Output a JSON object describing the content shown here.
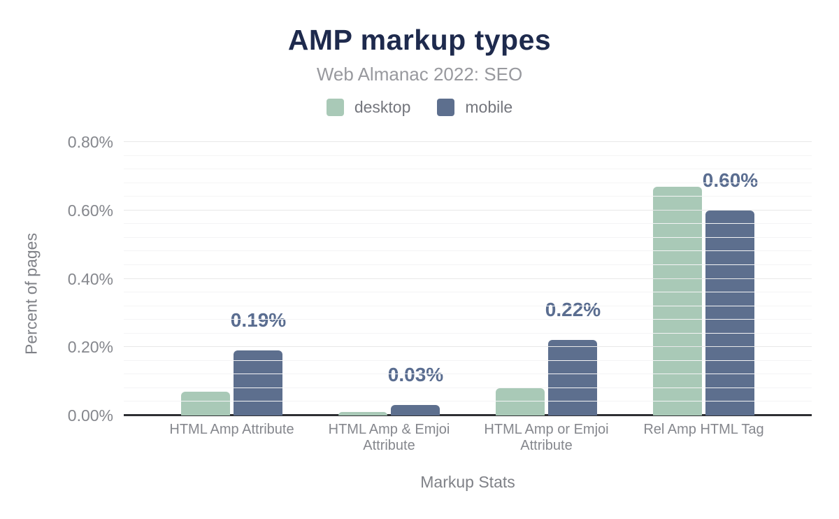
{
  "header": {
    "title": "AMP markup types",
    "subtitle": "Web Almanac 2022: SEO"
  },
  "chart_data": {
    "type": "bar",
    "title": "AMP markup types",
    "subtitle": "Web Almanac 2022: SEO",
    "xlabel": "Markup Stats",
    "ylabel": "Percent of pages",
    "categories": [
      "HTML Amp Attribute",
      "HTML Amp & Emjoi Attribute",
      "HTML Amp or Emjoi Attribute",
      "Rel Amp HTML Tag"
    ],
    "series": [
      {
        "name": "desktop",
        "color": "#a9c9b7",
        "values": [
          0.07,
          0.01,
          0.08,
          0.67
        ]
      },
      {
        "name": "mobile",
        "color": "#5d6f8e",
        "values": [
          0.19,
          0.03,
          0.22,
          0.6
        ],
        "data_labels": [
          "0.19%",
          "0.03%",
          "0.22%",
          "0.60%"
        ]
      }
    ],
    "y_axis": {
      "min": 0,
      "max": 0.8,
      "major_step": 0.2,
      "minor_step": 0.04,
      "tick_labels": [
        "0.00%",
        "0.20%",
        "0.40%",
        "0.60%",
        "0.80%"
      ]
    },
    "legend_position": "top",
    "grid": true,
    "data_label_color": "#5a6d90",
    "value_unit": "percent of pages"
  }
}
